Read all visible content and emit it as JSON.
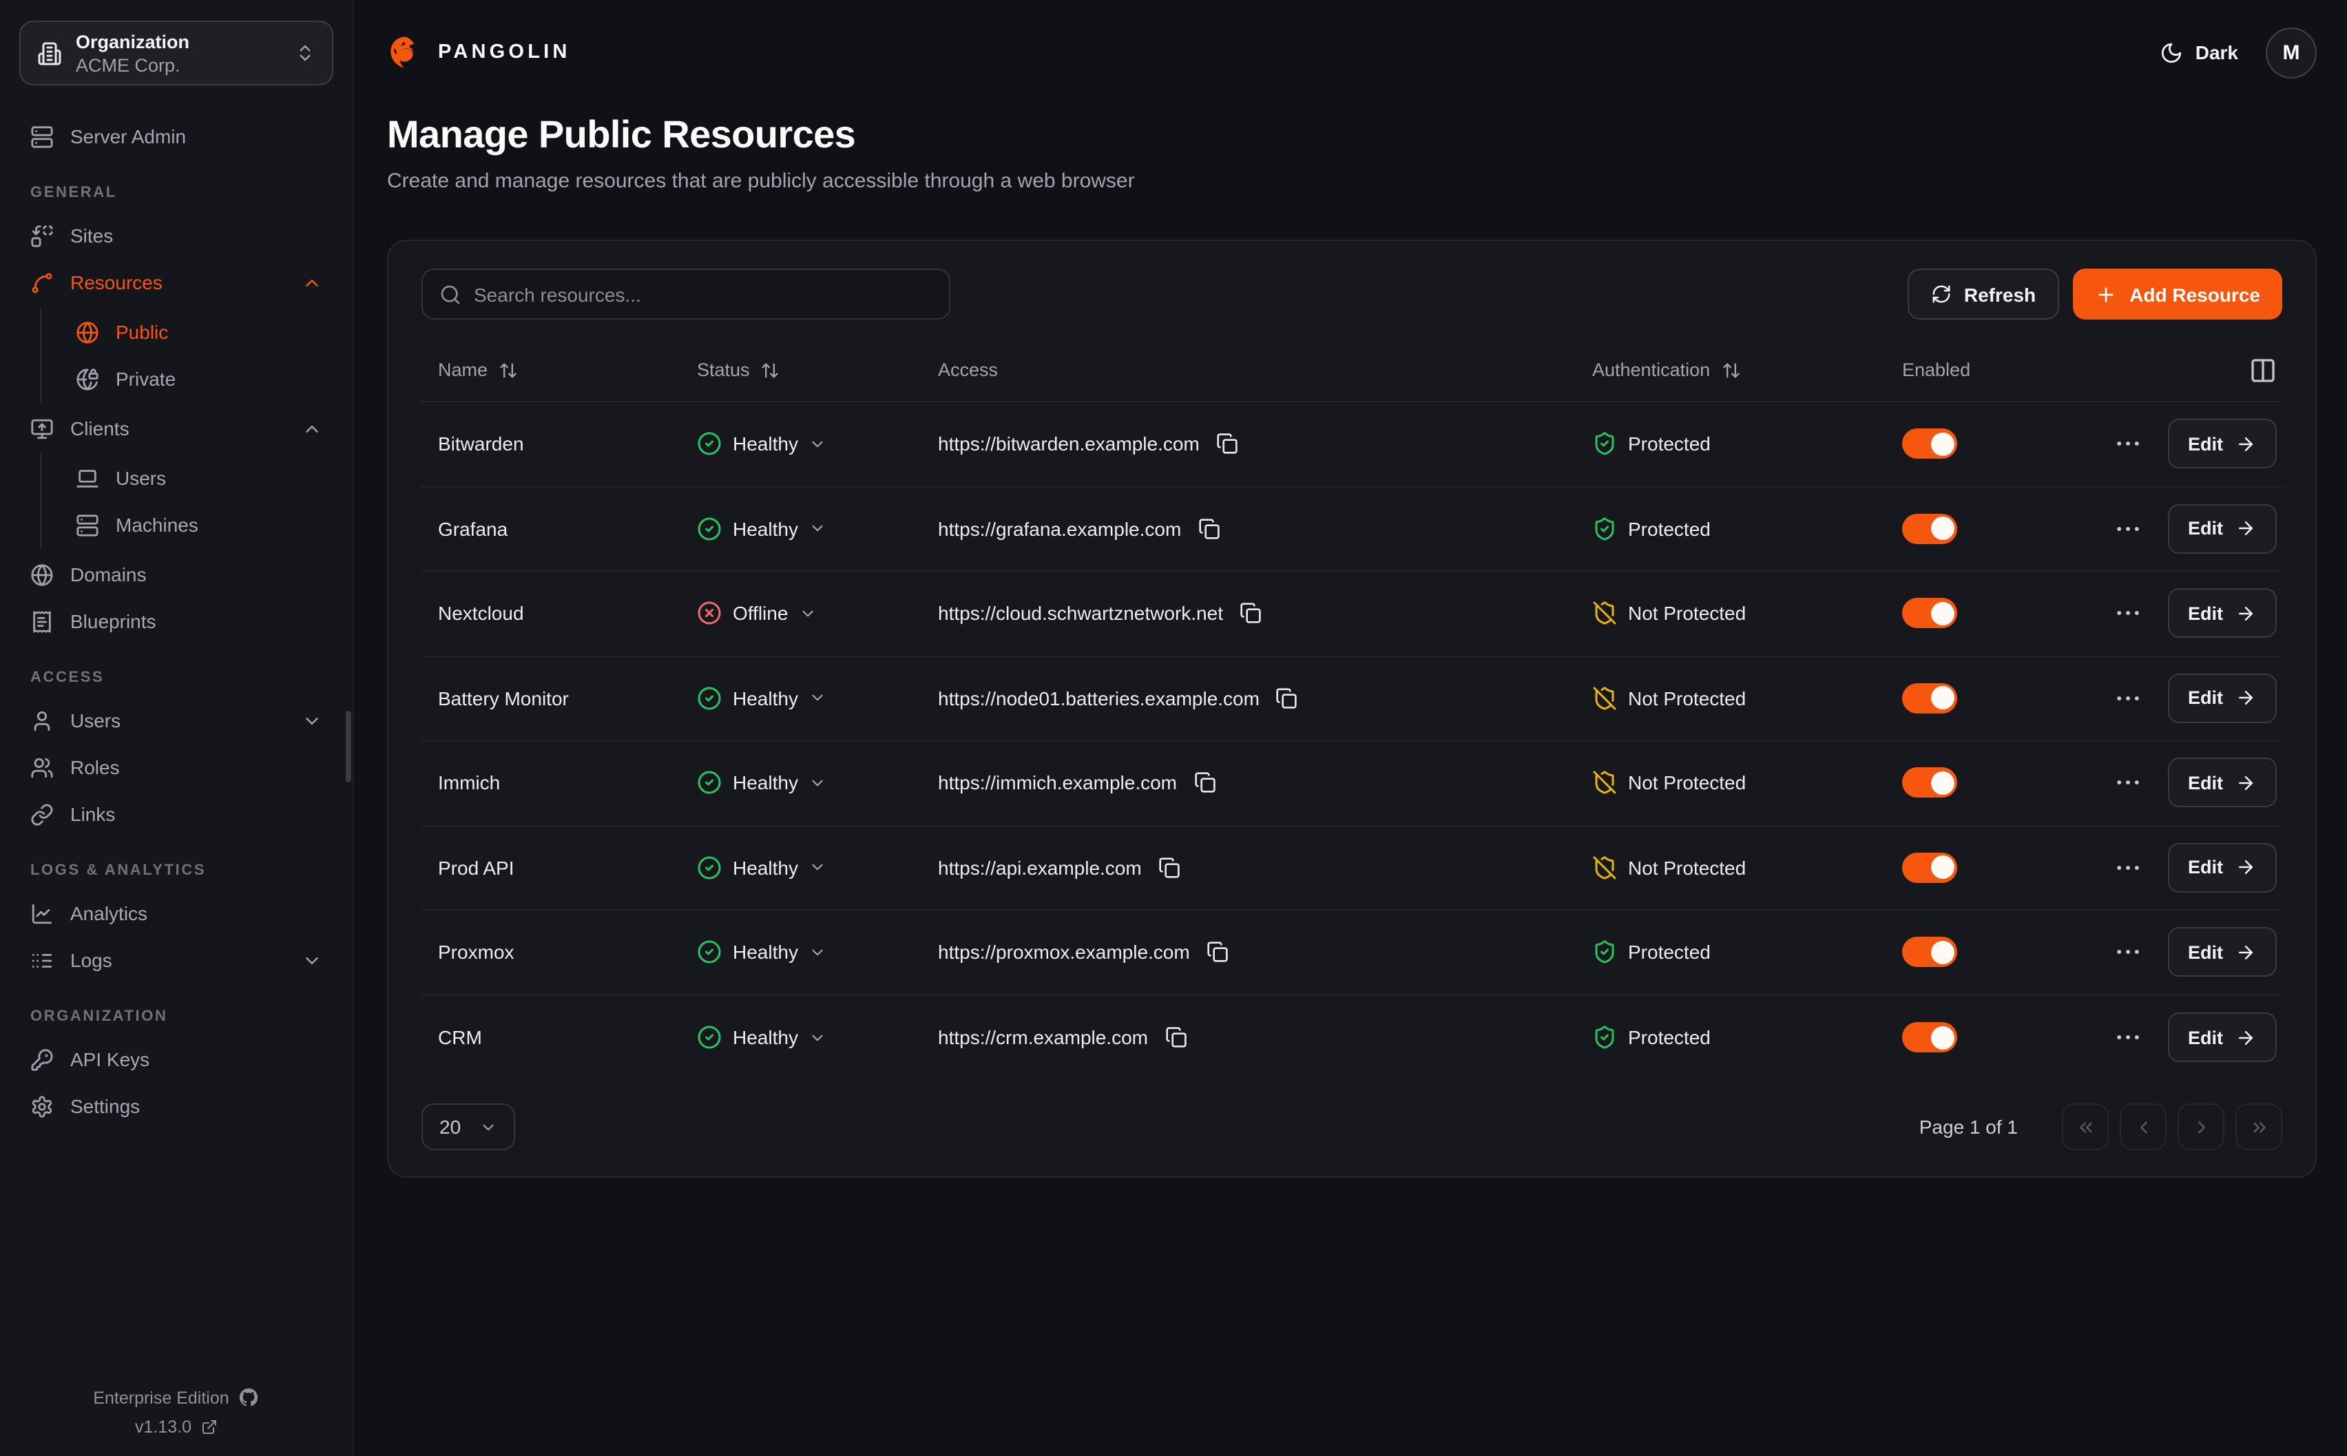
{
  "org_switcher": {
    "label": "Organization",
    "value": "ACME Corp."
  },
  "sidebar": {
    "server_admin_label": "Server Admin",
    "general_title": "GENERAL",
    "sites_label": "Sites",
    "resources_label": "Resources",
    "public_label": "Public",
    "private_label": "Private",
    "clients_label": "Clients",
    "client_users_label": "Users",
    "machines_label": "Machines",
    "domains_label": "Domains",
    "blueprints_label": "Blueprints",
    "access_title": "ACCESS",
    "users_label": "Users",
    "roles_label": "Roles",
    "links_label": "Links",
    "logs_title": "LOGS & ANALYTICS",
    "analytics_label": "Analytics",
    "logs_label": "Logs",
    "org_title": "ORGANIZATION",
    "api_keys_label": "API Keys",
    "settings_label": "Settings",
    "edition_label": "Enterprise Edition",
    "version_label": "v1.13.0"
  },
  "topbar": {
    "brand": "PANGOLIN",
    "theme_label": "Dark",
    "avatar_initial": "M"
  },
  "page": {
    "title": "Manage Public Resources",
    "subtitle": "Create and manage resources that are publicly accessible through a web browser"
  },
  "toolbar": {
    "search_placeholder": "Search resources...",
    "refresh_label": "Refresh",
    "add_label": "Add Resource"
  },
  "table": {
    "col_name": "Name",
    "col_status": "Status",
    "col_access": "Access",
    "col_auth": "Authentication",
    "col_enabled": "Enabled",
    "edit_label": "Edit"
  },
  "resources": [
    {
      "name": "Bitwarden",
      "status_label": "Healthy",
      "status_state": "healthy",
      "url": "https://bitwarden.example.com",
      "auth_label": "Protected",
      "auth_state": "protected",
      "enabled": true
    },
    {
      "name": "Grafana",
      "status_label": "Healthy",
      "status_state": "healthy",
      "url": "https://grafana.example.com",
      "auth_label": "Protected",
      "auth_state": "protected",
      "enabled": true
    },
    {
      "name": "Nextcloud",
      "status_label": "Offline",
      "status_state": "offline",
      "url": "https://cloud.schwartznetwork.net",
      "auth_label": "Not Protected",
      "auth_state": "not_protected",
      "enabled": true
    },
    {
      "name": "Battery Monitor",
      "status_label": "Healthy",
      "status_state": "healthy",
      "url": "https://node01.batteries.example.com",
      "auth_label": "Not Protected",
      "auth_state": "not_protected",
      "enabled": true
    },
    {
      "name": "Immich",
      "status_label": "Healthy",
      "status_state": "healthy",
      "url": "https://immich.example.com",
      "auth_label": "Not Protected",
      "auth_state": "not_protected",
      "enabled": true
    },
    {
      "name": "Prod API",
      "status_label": "Healthy",
      "status_state": "healthy",
      "url": "https://api.example.com",
      "auth_label": "Not Protected",
      "auth_state": "not_protected",
      "enabled": true
    },
    {
      "name": "Proxmox",
      "status_label": "Healthy",
      "status_state": "healthy",
      "url": "https://proxmox.example.com",
      "auth_label": "Protected",
      "auth_state": "protected",
      "enabled": true
    },
    {
      "name": "CRM",
      "status_label": "Healthy",
      "status_state": "healthy",
      "url": "https://crm.example.com",
      "auth_label": "Protected",
      "auth_state": "protected",
      "enabled": true
    }
  ],
  "pagination": {
    "page_size": "20",
    "page_label": "Page 1 of 1"
  },
  "colors": {
    "accent": "#f4570d",
    "healthy": "#23c55e",
    "offline": "#f16a6a",
    "warning": "#eab308"
  }
}
